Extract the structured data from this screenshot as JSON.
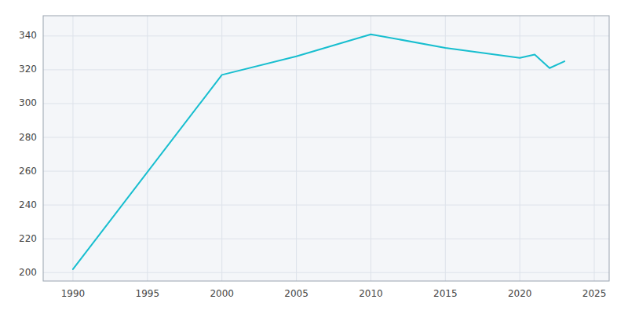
{
  "chart_data": {
    "type": "line",
    "x": [
      1990,
      2000,
      2005,
      2010,
      2015,
      2020,
      2021,
      2022,
      2023
    ],
    "values": [
      202,
      317,
      328,
      341,
      333,
      327,
      329,
      321,
      325
    ],
    "color": "#17BECF",
    "xlim": [
      1988,
      2026
    ],
    "ylim": [
      195,
      352
    ],
    "xticks": [
      1990,
      1995,
      2000,
      2005,
      2010,
      2015,
      2020,
      2025
    ],
    "yticks": [
      200,
      220,
      240,
      260,
      280,
      300,
      320,
      340
    ],
    "grid": true
  }
}
